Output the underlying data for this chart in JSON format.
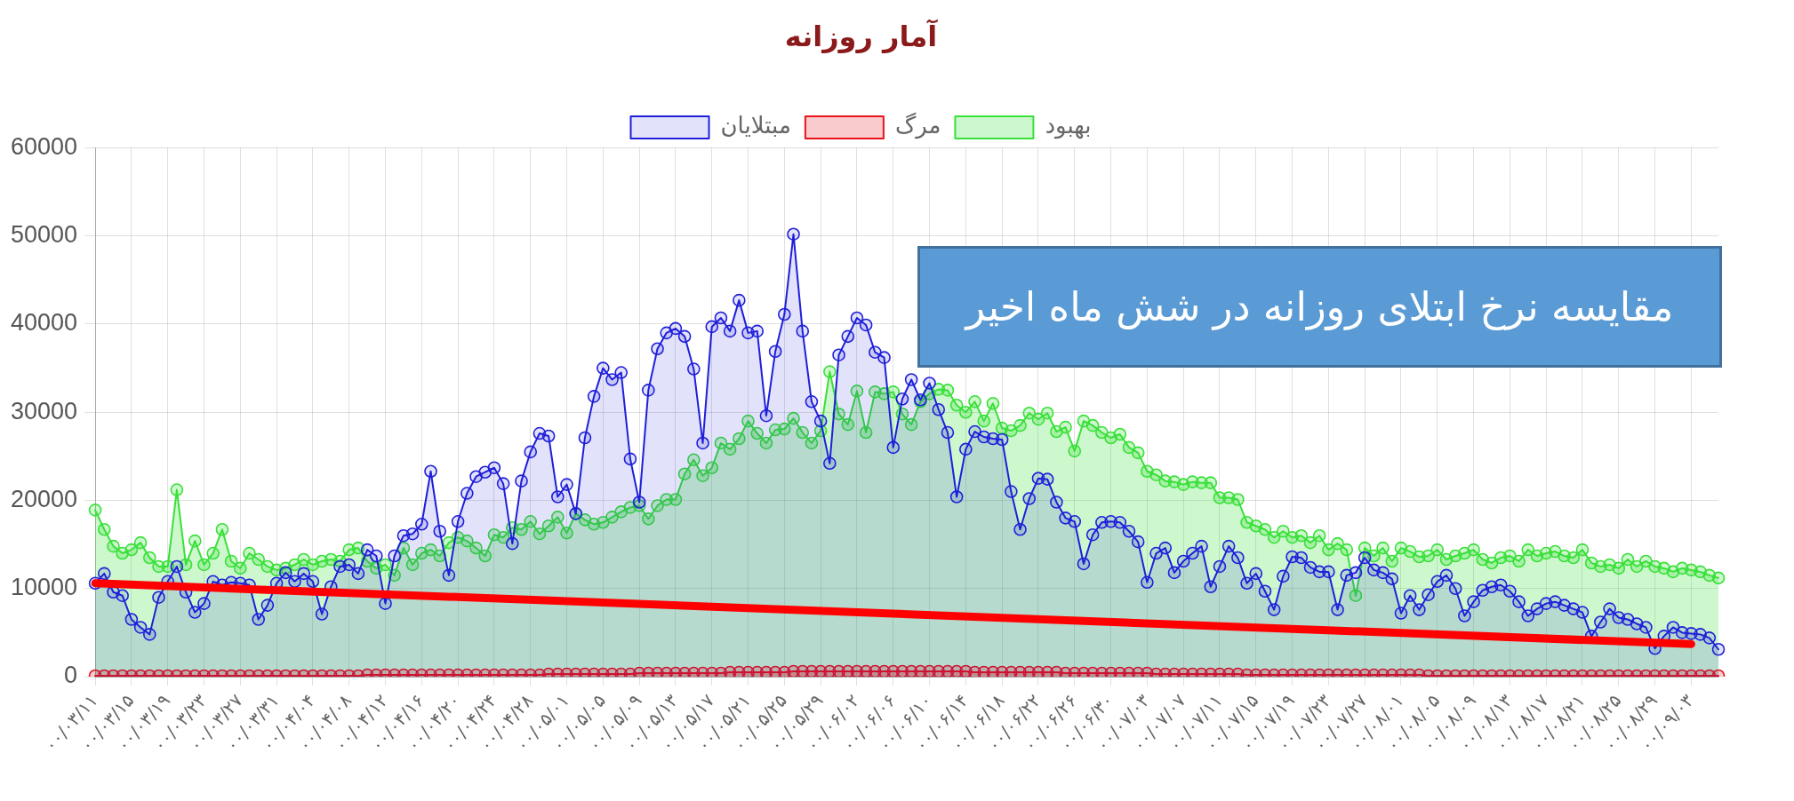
{
  "chart_data": {
    "type": "area",
    "title": "آمار روزانه",
    "annotations": [
      "مقایسه نرخ ابتلای روزانه در شش ماه اخیر"
    ],
    "categories": [
      "۰۰/۰۳/۱۱",
      null,
      null,
      null,
      "۰۰/۰۳/۱۵",
      null,
      null,
      null,
      "۰۰/۰۳/۱۹",
      null,
      null,
      null,
      "۰۰/۰۳/۲۳",
      null,
      null,
      null,
      "۰۰/۰۳/۲۷",
      null,
      null,
      null,
      "۰۰/۰۳/۳۱",
      null,
      null,
      null,
      "۰۰/۰۴/۰۴",
      null,
      null,
      null,
      "۰۰/۰۴/۰۸",
      null,
      null,
      null,
      "۰۰/۰۴/۱۲",
      null,
      null,
      null,
      "۰۰/۰۴/۱۶",
      null,
      null,
      null,
      "۰۰/۰۴/۲۰",
      null,
      null,
      null,
      "۰۰/۰۴/۲۴",
      null,
      null,
      null,
      "۰۰/۰۴/۲۸",
      null,
      null,
      null,
      "۰۰/۰۵/۰۱",
      null,
      null,
      null,
      "۰۰/۰۵/۰۵",
      null,
      null,
      null,
      "۰۰/۰۵/۰۹",
      null,
      null,
      null,
      "۰۰/۰۵/۱۳",
      null,
      null,
      null,
      "۰۰/۰۵/۱۷",
      null,
      null,
      null,
      "۰۰/۰۵/۲۱",
      null,
      null,
      null,
      "۰۰/۰۵/۲۵",
      null,
      null,
      null,
      "۰۰/۰۵/۲۹",
      null,
      null,
      null,
      "۰۰/۰۶/۰۲",
      null,
      null,
      null,
      "۰۰/۰۶/۰۶",
      null,
      null,
      null,
      "۰۰/۰۶/۱۰",
      null,
      null,
      null,
      "۰۰/۰۶/۱۴",
      null,
      null,
      null,
      "۰۰/۰۶/۱۸",
      null,
      null,
      null,
      "۰۰/۰۶/۲۲",
      null,
      null,
      null,
      "۰۰/۰۶/۲۶",
      null,
      null,
      null,
      "۰۰/۰۶/۳۰",
      null,
      null,
      null,
      "۰۰/۰۷/۰۳",
      null,
      null,
      null,
      "۰۰/۰۷/۰۷",
      null,
      null,
      null,
      "۰۰/۰۷/۱۱",
      null,
      null,
      null,
      "۰۰/۰۷/۱۵",
      null,
      null,
      null,
      "۰۰/۰۷/۱۹",
      null,
      null,
      null,
      "۰۰/۰۷/۲۳",
      null,
      null,
      null,
      "۰۰/۰۷/۲۷",
      null,
      null,
      null,
      "۰۰/۰۸/۰۱",
      null,
      null,
      null,
      "۰۰/۰۸/۰۵",
      null,
      null,
      null,
      "۰۰/۰۸/۰۹",
      null,
      null,
      null,
      "۰۰/۰۸/۱۳",
      null,
      null,
      null,
      "۰۰/۰۸/۱۷",
      null,
      null,
      null,
      "۰۰/۰۸/۲۱",
      null,
      null,
      null,
      "۰۰/۰۸/۲۵",
      null,
      null,
      null,
      "۰۰/۰۸/۲۹",
      null,
      null,
      null,
      "۰۰/۰۹/۰۳",
      null,
      null,
      null
    ],
    "series": [
      {
        "name": "مبتلایان",
        "color": "#1f1fdb",
        "values": [
          10600,
          11700,
          9600,
          9200,
          6500,
          5600,
          4800,
          9000,
          10800,
          12500,
          9600,
          7300,
          8300,
          10800,
          10400,
          10700,
          10600,
          10400,
          6500,
          8100,
          10600,
          11800,
          10800,
          11700,
          10800,
          7100,
          10200,
          12500,
          12700,
          11700,
          14400,
          13700,
          8300,
          13700,
          16000,
          16200,
          17300,
          23300,
          16500,
          11500,
          17600,
          20800,
          22700,
          23200,
          23700,
          21900,
          15100,
          22200,
          25500,
          27600,
          27300,
          20400,
          21800,
          18500,
          27100,
          31800,
          35000,
          33700,
          34500,
          24700,
          19800,
          32500,
          37200,
          39000,
          39500,
          38600,
          34900,
          26500,
          39700,
          40700,
          39200,
          42700,
          39000,
          39200,
          29600,
          36900,
          41100,
          50200,
          39200,
          31200,
          29000,
          24200,
          36500,
          38600,
          40700,
          39900,
          36800,
          36200,
          26000,
          31500,
          33700,
          31400,
          33300,
          30300,
          27700,
          20400,
          25800,
          27800,
          27200,
          27000,
          26900,
          21000,
          16700,
          20200,
          22500,
          22400,
          19800,
          18000,
          17600,
          12800,
          16100,
          17500,
          17600,
          17500,
          16500,
          15300,
          10700,
          14000,
          14600,
          11800,
          13100,
          14000,
          14800,
          10200,
          12500,
          14800,
          13500,
          10600,
          11700,
          9700,
          7600,
          11400,
          13600,
          13500,
          12400,
          11900,
          11900,
          7600,
          11500,
          11800,
          13500,
          12100,
          11800,
          11100,
          7200,
          9200,
          7600,
          9300,
          10800,
          11500,
          10000,
          6900,
          8500,
          9800,
          10200,
          10400,
          9700,
          8500,
          6900,
          7700,
          8300,
          8500,
          8100,
          7700,
          7300,
          4600,
          6200,
          7700,
          6700,
          6500,
          6000,
          5600,
          3200,
          4600,
          5600,
          5000,
          4900,
          4800,
          4400,
          3100
        ]
      },
      {
        "name": "مرگ",
        "color": "#e8121a",
        "values": [
          100,
          100,
          100,
          100,
          100,
          100,
          100,
          100,
          100,
          100,
          100,
          100,
          100,
          100,
          100,
          100,
          100,
          100,
          100,
          100,
          100,
          100,
          100,
          100,
          100,
          100,
          100,
          100,
          100,
          100,
          200,
          200,
          200,
          200,
          200,
          200,
          200,
          200,
          200,
          200,
          200,
          200,
          200,
          200,
          200,
          200,
          200,
          200,
          200,
          200,
          300,
          300,
          300,
          300,
          300,
          300,
          300,
          300,
          300,
          300,
          400,
          400,
          400,
          400,
          400,
          400,
          400,
          400,
          400,
          400,
          500,
          500,
          500,
          500,
          500,
          500,
          500,
          600,
          600,
          600,
          600,
          600,
          600,
          600,
          600,
          600,
          600,
          600,
          600,
          600,
          600,
          600,
          600,
          600,
          600,
          600,
          600,
          500,
          500,
          500,
          500,
          500,
          500,
          500,
          500,
          500,
          500,
          400,
          400,
          400,
          400,
          400,
          400,
          400,
          400,
          400,
          400,
          300,
          300,
          300,
          300,
          300,
          300,
          300,
          300,
          300,
          300,
          200,
          200,
          200,
          200,
          200,
          200,
          200,
          200,
          200,
          200,
          200,
          200,
          200,
          200,
          200,
          200,
          200,
          200,
          200,
          200,
          100,
          100,
          100,
          100,
          100,
          100,
          100,
          100,
          100,
          100,
          100,
          100,
          100,
          100,
          100,
          100,
          100,
          100,
          100,
          100,
          100,
          100,
          100,
          100,
          100,
          100,
          100,
          100,
          100,
          100,
          100,
          100,
          100
        ]
      },
      {
        "name": "بهبود",
        "color": "#38e038",
        "values": [
          18900,
          16700,
          14800,
          14000,
          14400,
          15200,
          13500,
          12500,
          12500,
          21200,
          12700,
          15400,
          12700,
          14000,
          16700,
          13100,
          12300,
          14000,
          13300,
          12500,
          12100,
          12300,
          12700,
          13300,
          12700,
          13100,
          13300,
          13100,
          14400,
          14600,
          13100,
          12300,
          12700,
          11500,
          14600,
          12700,
          14000,
          14400,
          13700,
          15200,
          15800,
          15400,
          14600,
          13700,
          16100,
          15800,
          16900,
          16700,
          17600,
          16200,
          17100,
          18100,
          16300,
          18500,
          17800,
          17300,
          17500,
          18100,
          18700,
          19200,
          19400,
          17900,
          19400,
          20100,
          20100,
          23000,
          24600,
          22800,
          23700,
          26500,
          25800,
          27000,
          29000,
          27600,
          26500,
          28000,
          28100,
          29300,
          27700,
          26500,
          27900,
          34600,
          29800,
          28600,
          32400,
          27700,
          32300,
          32100,
          32300,
          29800,
          28600,
          31200,
          32100,
          32600,
          32500,
          30800,
          30000,
          31200,
          29000,
          31000,
          28200,
          27900,
          28500,
          29900,
          29200,
          29900,
          27800,
          28300,
          25600,
          29000,
          28500,
          27700,
          27100,
          27500,
          26000,
          25400,
          23300,
          22900,
          22200,
          22100,
          21800,
          22100,
          22000,
          22000,
          20300,
          20300,
          20100,
          17500,
          17100,
          16700,
          15800,
          16500,
          15800,
          16000,
          15200,
          16000,
          14400,
          15100,
          14400,
          9200,
          14600,
          13700,
          14600,
          13100,
          14600,
          14200,
          13600,
          13700,
          14400,
          13300,
          13700,
          14000,
          14400,
          13300,
          12900,
          13500,
          13700,
          13100,
          14400,
          13700,
          14000,
          14200,
          13700,
          13500,
          14400,
          12900,
          12500,
          12700,
          12300,
          13300,
          12500,
          13100,
          12500,
          12300,
          11900,
          12300,
          12100,
          11900,
          11500,
          11200
        ]
      },
      {
        "type": "line",
        "color": "#ff0000",
        "marker": "none",
        "x": [
          "۰۰/۰۳/۱۱",
          "۰۰/۰۹/۰۳"
        ],
        "values": [
          10600,
          3700
        ]
      }
    ],
    "ylim": [
      0,
      60000
    ],
    "yticks": [
      0,
      10000,
      20000,
      30000,
      40000,
      50000,
      60000
    ],
    "grid": true,
    "legend": "top",
    "marker": "circle"
  }
}
